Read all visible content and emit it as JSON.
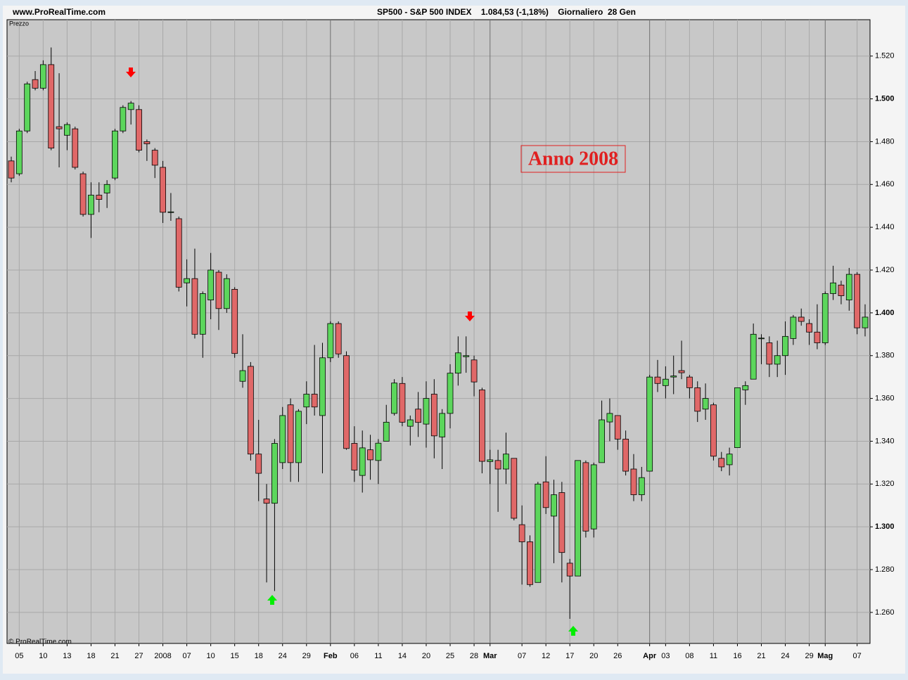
{
  "chart_data": {
    "type": "candlestick",
    "source": "www.ProRealTime.com",
    "title": "SP500 - S&P 500 INDEX    1.084,53 (-1,18%)    Giornaliero  28 Gen",
    "y_label": "Prezzo",
    "copyright": "© ProRealTime.com",
    "annotation": "Anno 2008",
    "up_color": "#5cd65c",
    "down_color": "#e06868",
    "categories": [
      null,
      "05",
      null,
      null,
      "10",
      null,
      null,
      "13",
      null,
      null,
      "18",
      null,
      null,
      "21",
      null,
      null,
      "27",
      null,
      null,
      "2008",
      null,
      null,
      "07",
      null,
      null,
      "10",
      null,
      null,
      "15",
      null,
      null,
      "18",
      null,
      null,
      "24",
      null,
      null,
      "29",
      null,
      null,
      "Feb",
      null,
      null,
      "06",
      null,
      null,
      "11",
      null,
      null,
      "14",
      null,
      null,
      "20",
      null,
      null,
      "25",
      null,
      null,
      "28",
      null,
      "Mar",
      null,
      null,
      null,
      "07",
      null,
      null,
      "12",
      null,
      null,
      "17",
      null,
      null,
      "20",
      null,
      null,
      "26",
      null,
      null,
      null,
      "Apr",
      null,
      "03",
      null,
      null,
      "08",
      null,
      null,
      "11",
      null,
      null,
      "16",
      null,
      null,
      "21",
      null,
      null,
      "24",
      null,
      null,
      "29",
      null,
      "Mag",
      null,
      null,
      null,
      "07",
      null
    ],
    "open": [
      1471,
      1465,
      1485,
      1509,
      1505,
      1516,
      1487,
      1483,
      1486,
      1465,
      1446,
      1455,
      1456,
      1463,
      1485,
      1495,
      1495,
      1480,
      1476,
      1468,
      1447,
      1444,
      1414,
      1416,
      1390,
      1406,
      1419,
      1402,
      1411,
      1368,
      1375,
      1334,
      1313,
      1311,
      1330,
      1357,
      1330,
      1356,
      1362,
      1352,
      1379,
      1395,
      1380,
      1339,
      1324,
      1336,
      1331,
      1340,
      1353,
      1367,
      1347,
      1355,
      1348,
      1362,
      1342,
      1353,
      1371.8,
      1379.5,
      1378,
      1364,
      1330.5,
      1331,
      1327,
      1332,
      1301,
      1293,
      1274,
      1321,
      1305,
      1316,
      1283,
      1277,
      1330,
      1299,
      1330,
      1349,
      1352,
      1341,
      1327,
      1315,
      1326,
      1370,
      1366,
      1370,
      1373,
      1370,
      1365,
      1355,
      1357,
      1332,
      1329,
      1337,
      1364,
      1369,
      1388,
      1386,
      1376,
      1380,
      1388,
      1398,
      1395,
      1391,
      1386,
      1409,
      1413,
      1406,
      1418,
      1393
    ],
    "high": [
      1473,
      1486,
      1508,
      1513,
      1518,
      1524,
      1512,
      1489,
      1487,
      1466,
      1461,
      1461,
      1462,
      1486,
      1497,
      1499,
      1497,
      1481,
      1477,
      1471,
      1456,
      1445,
      1425,
      1430,
      1410,
      1428,
      1420,
      1418,
      1412,
      1390,
      1377,
      1350,
      1320,
      1341,
      1356,
      1360,
      1355,
      1368,
      1385,
      1386,
      1396,
      1396,
      1382,
      1347,
      1345,
      1343,
      1341,
      1357,
      1369,
      1370,
      1352,
      1363,
      1368,
      1369,
      1355,
      1376,
      1389,
      1389,
      1380,
      1365,
      1336,
      1336,
      1344,
      1332,
      1310,
      1296,
      1321,
      1333,
      1322,
      1321,
      1285,
      1331,
      1331,
      1330,
      1359,
      1360,
      1352,
      1345,
      1334,
      1328,
      1371,
      1378,
      1375,
      1380,
      1387,
      1371,
      1368,
      1367,
      1358,
      1335,
      1337,
      1365,
      1368,
      1395,
      1390,
      1389,
      1387,
      1396,
      1399,
      1402,
      1397,
      1404,
      1410,
      1422,
      1415,
      1421,
      1419,
      1404
    ],
    "low": [
      1461,
      1464,
      1484,
      1504,
      1504,
      1476,
      1468,
      1476,
      1467,
      1445,
      1435,
      1447,
      1449,
      1462,
      1484,
      1488,
      1475,
      1471,
      1463,
      1442,
      1443,
      1410,
      1403,
      1388,
      1379,
      1397,
      1392,
      1400,
      1379,
      1365,
      1331,
      1312,
      1274,
      1270,
      1327,
      1321,
      1321,
      1348,
      1352,
      1325,
      1377,
      1379,
      1336,
      1321,
      1316,
      1322,
      1320,
      1340,
      1352,
      1347,
      1338,
      1342,
      1337,
      1332,
      1327,
      1346,
      1366,
      1372,
      1361,
      1325,
      1320,
      1307,
      1320,
      1303,
      1273,
      1272,
      1274,
      1306,
      1283,
      1274,
      1257,
      1277,
      1295,
      1295,
      1330,
      1340,
      1336,
      1324,
      1312,
      1312,
      1326,
      1363,
      1360,
      1362,
      1369,
      1360,
      1349,
      1350,
      1331,
      1326,
      1324,
      1337,
      1357,
      1369,
      1376,
      1370,
      1370,
      1371,
      1385,
      1394,
      1385,
      1383,
      1385,
      1406,
      1404,
      1401,
      1390,
      1389
    ],
    "close": [
      1463,
      1485,
      1507,
      1505,
      1516,
      1477,
      1486,
      1488,
      1468,
      1446,
      1455,
      1453,
      1460,
      1485,
      1496,
      1498,
      1476,
      1479,
      1469,
      1447,
      1447.2,
      1412,
      1416,
      1390,
      1409,
      1420,
      1402,
      1416,
      1381,
      1373,
      1334,
      1325,
      1311,
      1339,
      1352,
      1330,
      1354,
      1362,
      1356,
      1379,
      1395,
      1380.8,
      1336.6,
      1326.5,
      1336.9,
      1331.3,
      1339.1,
      1348.9,
      1367.2,
      1348.9,
      1350,
      1348.8,
      1360,
      1342.5,
      1353,
      1371.8,
      1381.3,
      1380,
      1367.7,
      1330.6,
      1331.3,
      1327,
      1334,
      1304,
      1293,
      1273,
      1320,
      1309,
      1315,
      1288,
      1277,
      1331,
      1298,
      1329,
      1350,
      1353,
      1341,
      1326,
      1315,
      1323,
      1370,
      1367,
      1369,
      1370.5,
      1372,
      1365,
      1354,
      1360,
      1333,
      1328,
      1334,
      1365,
      1366,
      1390,
      1388.2,
      1376,
      1380,
      1389,
      1398,
      1396,
      1391,
      1386,
      1409,
      1414,
      1408,
      1418,
      1393,
      1398
    ],
    "ylim": [
      1245.5,
      1537
    ],
    "yticks": [
      {
        "value": 1260,
        "label": "1.260"
      },
      {
        "value": 1280,
        "label": "1.280"
      },
      {
        "value": 1300,
        "label": "1.300"
      },
      {
        "value": 1320,
        "label": "1.320"
      },
      {
        "value": 1340,
        "label": "1.340"
      },
      {
        "value": 1360,
        "label": "1.360"
      },
      {
        "value": 1380,
        "label": "1.380"
      },
      {
        "value": 1400,
        "label": "1.400"
      },
      {
        "value": 1420,
        "label": "1.420"
      },
      {
        "value": 1440,
        "label": "1.440"
      },
      {
        "value": 1460,
        "label": "1.460"
      },
      {
        "value": 1480,
        "label": "1.480"
      },
      {
        "value": 1500,
        "label": "1.500"
      },
      {
        "value": 1520,
        "label": "1.520"
      }
    ],
    "grid": true
  }
}
